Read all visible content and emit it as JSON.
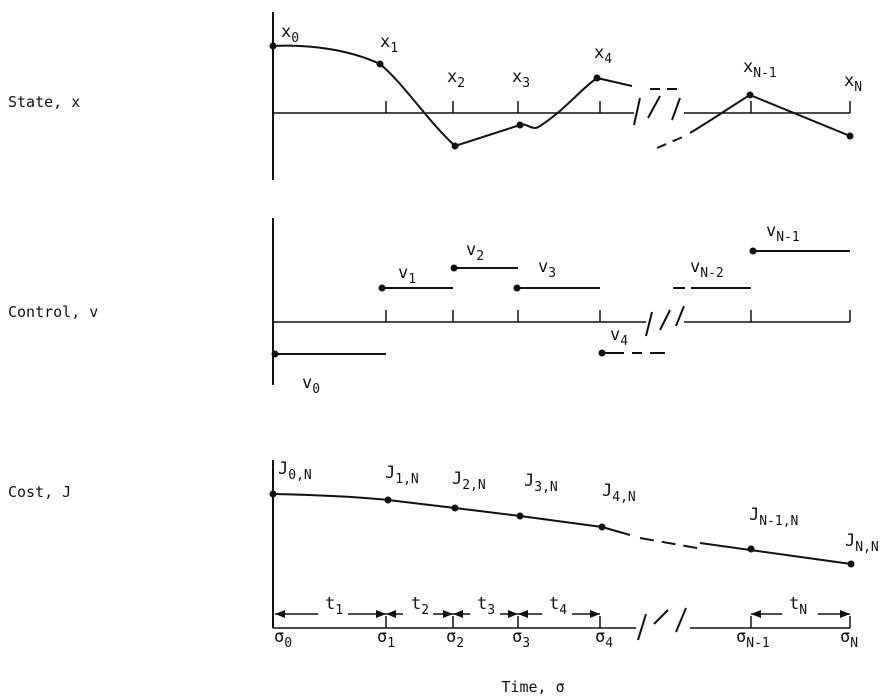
{
  "panels": {
    "state": {
      "label": "State, x",
      "points": [
        {
          "sym": "x",
          "sub": "0"
        },
        {
          "sym": "x",
          "sub": "1"
        },
        {
          "sym": "x",
          "sub": "2"
        },
        {
          "sym": "x",
          "sub": "3"
        },
        {
          "sym": "x",
          "sub": "4"
        },
        {
          "sym": "x",
          "sub": "N-1"
        },
        {
          "sym": "x",
          "sub": "N"
        }
      ]
    },
    "control": {
      "label": "Control, v",
      "segments": [
        {
          "sym": "v",
          "sub": "0"
        },
        {
          "sym": "v",
          "sub": "1"
        },
        {
          "sym": "v",
          "sub": "2"
        },
        {
          "sym": "v",
          "sub": "3"
        },
        {
          "sym": "v",
          "sub": "4"
        },
        {
          "sym": "v",
          "sub": "N-2"
        },
        {
          "sym": "v",
          "sub": "N-1"
        }
      ]
    },
    "cost": {
      "label": "Cost, J",
      "points": [
        {
          "sym": "J",
          "sub": "0,N"
        },
        {
          "sym": "J",
          "sub": "1,N"
        },
        {
          "sym": "J",
          "sub": "2,N"
        },
        {
          "sym": "J",
          "sub": "3,N"
        },
        {
          "sym": "J",
          "sub": "4,N"
        },
        {
          "sym": "J",
          "sub": "N-1,N"
        },
        {
          "sym": "J",
          "sub": "N,N"
        }
      ],
      "intervals": [
        {
          "sym": "t",
          "sub": "1"
        },
        {
          "sym": "t",
          "sub": "2"
        },
        {
          "sym": "t",
          "sub": "3"
        },
        {
          "sym": "t",
          "sub": "4"
        },
        {
          "sym": "t",
          "sub": "N"
        }
      ],
      "ticks": [
        {
          "sym": "σ",
          "sub": "0"
        },
        {
          "sym": "σ",
          "sub": "1"
        },
        {
          "sym": "σ",
          "sub": "2"
        },
        {
          "sym": "σ",
          "sub": "3"
        },
        {
          "sym": "σ",
          "sub": "4"
        },
        {
          "sym": "σ",
          "sub": "N-1"
        },
        {
          "sym": "σ",
          "sub": "N"
        }
      ]
    }
  },
  "axis_title": "Time, σ"
}
